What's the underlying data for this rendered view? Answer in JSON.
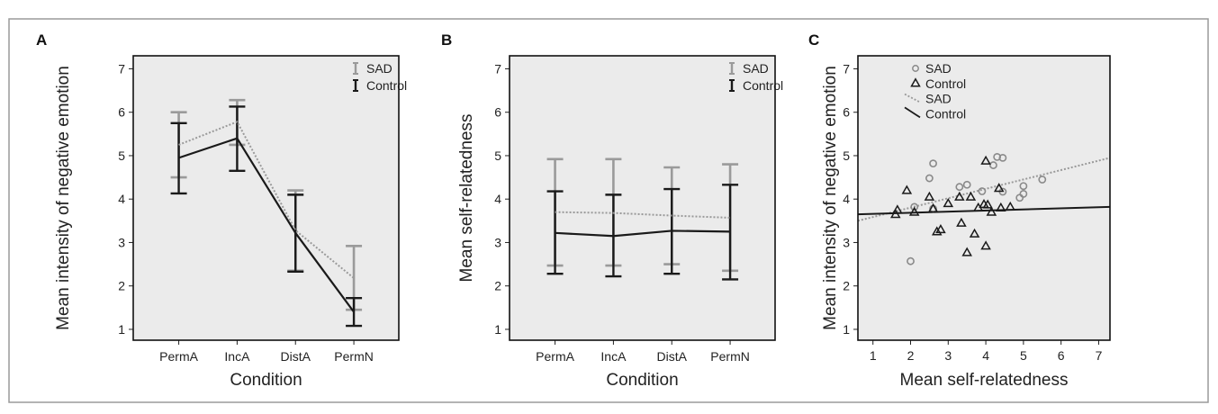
{
  "chart_data": [
    {
      "panel_label": "A",
      "type": "line",
      "xlabel": "Condition",
      "ylabel": "Mean intensity of negative emotion",
      "categories": [
        "PermA",
        "IncA",
        "DistA",
        "PermN"
      ],
      "ylim": [
        0.75,
        7.3
      ],
      "yticks": [
        1,
        2,
        3,
        4,
        5,
        6,
        7
      ],
      "error_bars": true,
      "grid": false,
      "legend_position": "top-right",
      "series": [
        {
          "name": "SAD",
          "style": "dotted",
          "color": "#9a9a9a",
          "values": [
            5.25,
            5.78,
            3.28,
            2.18
          ],
          "lower": [
            4.5,
            5.25,
            2.35,
            1.45
          ],
          "upper": [
            6.0,
            6.28,
            4.2,
            2.92
          ]
        },
        {
          "name": "Control",
          "style": "solid",
          "color": "#1a1a1a",
          "values": [
            4.95,
            5.4,
            3.22,
            1.4
          ],
          "lower": [
            4.13,
            4.65,
            2.33,
            1.08
          ],
          "upper": [
            5.75,
            6.13,
            4.1,
            1.72
          ]
        }
      ]
    },
    {
      "panel_label": "B",
      "type": "line",
      "xlabel": "Condition",
      "ylabel": "Mean self-relatedness",
      "categories": [
        "PermA",
        "IncA",
        "DistA",
        "PermN"
      ],
      "ylim": [
        0.75,
        7.3
      ],
      "yticks": [
        1,
        2,
        3,
        4,
        5,
        6,
        7
      ],
      "error_bars": true,
      "grid": false,
      "legend_position": "top-right",
      "series": [
        {
          "name": "SAD",
          "style": "dotted",
          "color": "#9a9a9a",
          "values": [
            3.7,
            3.68,
            3.62,
            3.57
          ],
          "lower": [
            2.47,
            2.47,
            2.5,
            2.35
          ],
          "upper": [
            4.92,
            4.92,
            4.73,
            4.8
          ]
        },
        {
          "name": "Control",
          "style": "solid",
          "color": "#1a1a1a",
          "values": [
            3.22,
            3.15,
            3.27,
            3.25
          ],
          "lower": [
            2.28,
            2.22,
            2.28,
            2.15
          ],
          "upper": [
            4.18,
            4.1,
            4.23,
            4.33
          ]
        }
      ]
    },
    {
      "panel_label": "C",
      "type": "scatter",
      "xlabel": "Mean self-relatedness",
      "ylabel": "Mean intensity of negative emotion",
      "xlim": [
        0.6,
        7.3
      ],
      "ylim": [
        0.75,
        7.3
      ],
      "xticks": [
        1,
        2,
        3,
        4,
        5,
        6,
        7
      ],
      "yticks": [
        1,
        2,
        3,
        4,
        5,
        6,
        7
      ],
      "grid": false,
      "legend_position": "top-right",
      "legend": [
        "SAD",
        "Control",
        "SAD",
        "Control"
      ],
      "series": [
        {
          "name": "SAD",
          "marker": "circle",
          "color": "#8a8a8a",
          "points": [
            [
              2.0,
              2.57
            ],
            [
              2.1,
              3.82
            ],
            [
              2.5,
              4.48
            ],
            [
              2.6,
              3.78
            ],
            [
              2.6,
              4.82
            ],
            [
              3.3,
              4.28
            ],
            [
              3.5,
              4.33
            ],
            [
              3.9,
              4.18
            ],
            [
              4.2,
              4.78
            ],
            [
              4.3,
              4.97
            ],
            [
              4.45,
              4.95
            ],
            [
              4.45,
              4.17
            ],
            [
              4.9,
              4.03
            ],
            [
              5.0,
              4.12
            ],
            [
              5.0,
              4.3
            ],
            [
              5.5,
              4.45
            ]
          ]
        },
        {
          "name": "Control",
          "marker": "triangle",
          "color": "#1a1a1a",
          "points": [
            [
              1.6,
              3.65
            ],
            [
              1.65,
              3.75
            ],
            [
              1.9,
              4.2
            ],
            [
              2.1,
              3.7
            ],
            [
              2.5,
              4.05
            ],
            [
              2.6,
              3.78
            ],
            [
              2.7,
              3.25
            ],
            [
              2.8,
              3.3
            ],
            [
              3.0,
              3.9
            ],
            [
              3.3,
              4.05
            ],
            [
              3.35,
              3.45
            ],
            [
              3.5,
              2.77
            ],
            [
              3.6,
              4.05
            ],
            [
              3.7,
              3.2
            ],
            [
              3.8,
              3.8
            ],
            [
              3.95,
              3.88
            ],
            [
              4.0,
              4.88
            ],
            [
              4.0,
              2.92
            ],
            [
              4.05,
              3.87
            ],
            [
              4.15,
              3.7
            ],
            [
              4.35,
              4.25
            ],
            [
              4.4,
              3.8
            ],
            [
              4.65,
              3.82
            ]
          ]
        },
        {
          "name": "SAD",
          "type": "fit_line",
          "style": "dotted",
          "color": "#9a9a9a",
          "points": [
            [
              0.6,
              3.5
            ],
            [
              7.3,
              4.95
            ]
          ]
        },
        {
          "name": "Control",
          "type": "fit_line",
          "style": "solid",
          "color": "#1a1a1a",
          "points": [
            [
              0.6,
              3.65
            ],
            [
              7.3,
              3.82
            ]
          ]
        }
      ]
    }
  ]
}
